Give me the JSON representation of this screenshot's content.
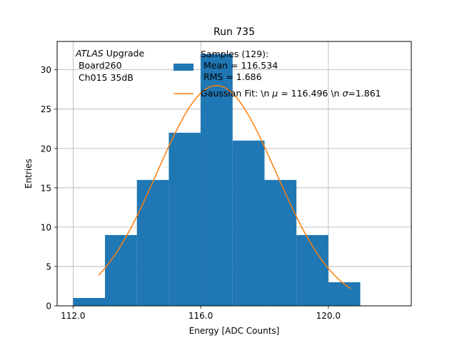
{
  "chart_data": {
    "type": "bar",
    "title": "Run 735",
    "xlabel": "Energy [ADC Counts]",
    "ylabel": "Entries",
    "xlim": [
      111.5,
      122.6
    ],
    "ylim": [
      0,
      33.6
    ],
    "xticks": [
      112.0,
      116.0,
      120.0
    ],
    "xtick_labels": [
      "112.0",
      "116.0",
      "120.0"
    ],
    "yticks": [
      0,
      5,
      10,
      15,
      20,
      25,
      30
    ],
    "yticks_labels": [
      "0",
      "5",
      "10",
      "15",
      "20",
      "25",
      "30"
    ],
    "grid": true,
    "bar_color": "#1f77b4",
    "fit_color": "#ff7f0e",
    "histogram": {
      "name": "Samples (129):\n Mean = 116.534\n RMS = 1.686",
      "bin_edges": [
        112,
        113,
        114,
        115,
        116,
        117,
        118,
        119,
        120,
        121
      ],
      "counts": [
        1,
        9,
        16,
        22,
        32,
        21,
        16,
        9,
        3
      ]
    },
    "fit": {
      "name": "Gaussian Fit: \\n $\\mu$ = 116.496 \\n $\\sigma$=1.861",
      "label_prefix": "Gaussian Fit: \\n ",
      "label_mu": "μ",
      "label_mid": " = 116.496 \\n ",
      "label_sigma": "σ",
      "label_suffix": "=1.861",
      "mu": 116.496,
      "sigma": 1.861,
      "amplitude": 28.0,
      "x_range": [
        112.8,
        120.7
      ]
    },
    "legend_position": "top-center",
    "annotation": {
      "italic": "ATLAS",
      "rest": " Upgrade",
      "line2": " Board260",
      "line3": " Ch015 35dB"
    }
  }
}
